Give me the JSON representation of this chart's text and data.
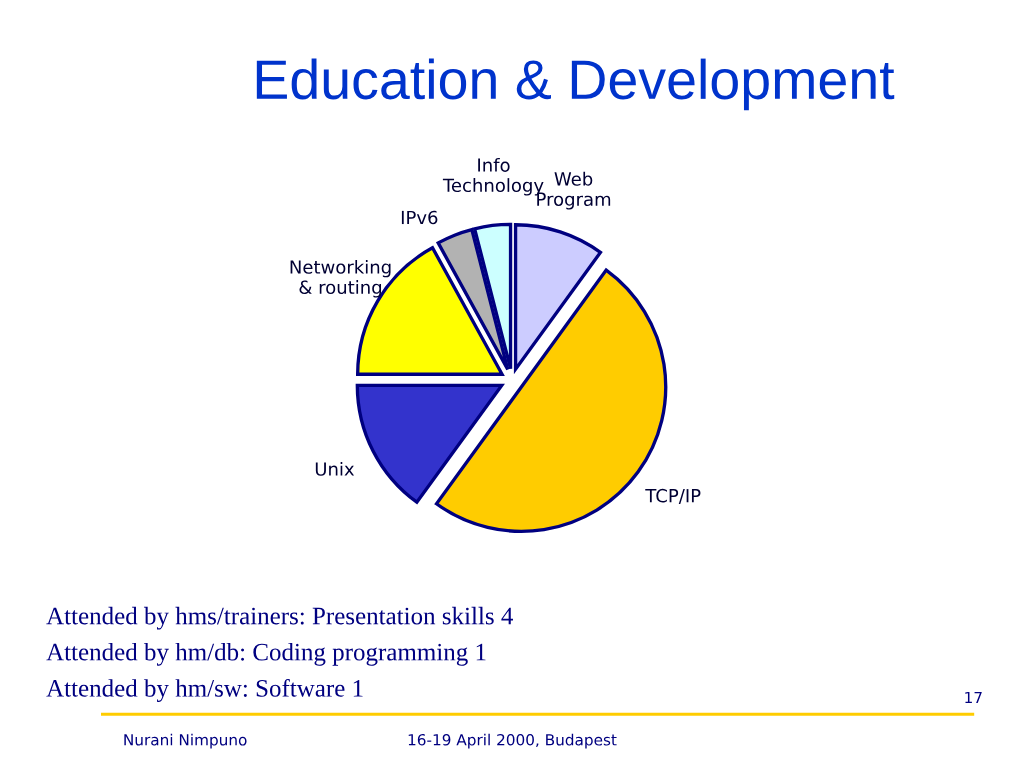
{
  "chart_data": {
    "type": "pie",
    "title": "Education & Development",
    "categories": [
      "Web\nProgram",
      "TCP/IP",
      "Unix",
      "Networking\n& routing",
      "IPv6",
      "Info\nTechnology"
    ],
    "values": [
      10,
      50,
      15,
      17,
      4,
      4
    ],
    "colors": [
      "#ccccff",
      "#ffcc00",
      "#3333cc",
      "#ffff00",
      "#b2b2b2",
      "#ccffff"
    ],
    "legend": false,
    "annotations": [
      "Attended by hms/trainers: Presentation skills 4",
      "Attended by hm/db: Coding programming 1",
      "Attended by hm/sw: Software 1",
      "Nurani Nimpuno",
      "16-19 April 2000, Budapest",
      "17"
    ]
  }
}
